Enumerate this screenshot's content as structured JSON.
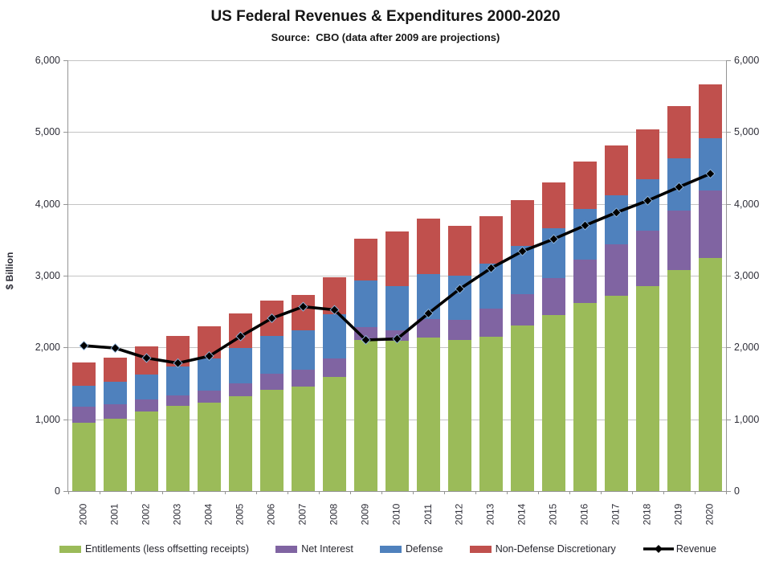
{
  "title": "US Federal Revenues & Expenditures 2000-2020",
  "subtitle": "Source:  CBO (data after 2009 are projections)",
  "y_axis": {
    "label": "$ Billion",
    "min": 0,
    "max": 6000,
    "step": 1000,
    "tick_labels": [
      "0",
      "1,000",
      "2,000",
      "3,000",
      "4,000",
      "5,000",
      "6,000"
    ]
  },
  "chart_data": {
    "type": "bar",
    "subtype": "stacked-bars-with-line-overlay",
    "title": "US Federal Revenues & Expenditures 2000-2020",
    "subtitle": "Source: CBO (data after 2009 are projections)",
    "xlabel": "",
    "ylabel": "$ Billion",
    "ylim": [
      0,
      6000
    ],
    "grid": true,
    "legend_position": "bottom",
    "categories": [
      2000,
      2001,
      2002,
      2003,
      2004,
      2005,
      2006,
      2007,
      2008,
      2009,
      2010,
      2011,
      2012,
      2013,
      2014,
      2015,
      2016,
      2017,
      2018,
      2019,
      2020
    ],
    "series": [
      {
        "name": "Entitlements (less offsetting receipts)",
        "type": "bar",
        "color": "#9BBB59",
        "values": [
          951,
          1008,
          1106,
          1182,
          1237,
          1320,
          1412,
          1450,
          1595,
          2100,
          2090,
          2140,
          2100,
          2155,
          2305,
          2455,
          2625,
          2720,
          2850,
          3075,
          3245
        ]
      },
      {
        "name": "Net Interest",
        "type": "bar",
        "color": "#8064A2",
        "values": [
          223,
          206,
          171,
          153,
          160,
          184,
          227,
          237,
          253,
          185,
          150,
          260,
          280,
          390,
          435,
          510,
          600,
          715,
          775,
          830,
          940
        ]
      },
      {
        "name": "Defense",
        "type": "bar",
        "color": "#4F81BD",
        "values": [
          295,
          306,
          349,
          405,
          454,
          494,
          520,
          548,
          612,
          645,
          620,
          620,
          620,
          625,
          675,
          695,
          700,
          680,
          715,
          735,
          735
        ]
      },
      {
        "name": "Non-Defense Discretionary",
        "type": "bar",
        "color": "#C0504D",
        "values": [
          320,
          343,
          385,
          420,
          441,
          474,
          496,
          494,
          522,
          585,
          755,
          775,
          700,
          660,
          640,
          640,
          660,
          695,
          695,
          720,
          740
        ]
      },
      {
        "name": "Revenue",
        "type": "line",
        "color": "#000000",
        "marker": "diamond",
        "marker_edge_color": "#8eb4dc",
        "values": [
          2025,
          1991,
          1853,
          1782,
          1880,
          2154,
          2407,
          2568,
          2524,
          2105,
          2120,
          2475,
          2815,
          3105,
          3340,
          3510,
          3700,
          3880,
          4045,
          4235,
          4420
        ]
      }
    ]
  },
  "style": {
    "gridline_color": "#c3c3c3",
    "axis_color": "#949494",
    "tick_label_color": "#2e2e38",
    "title_color": "#161616"
  }
}
